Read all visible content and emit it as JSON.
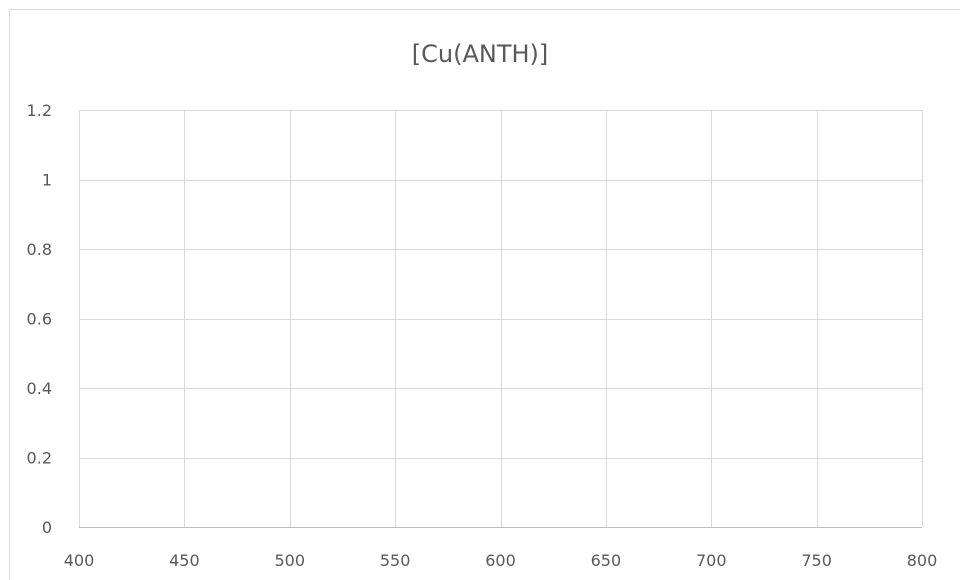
{
  "chart_data": {
    "type": "line",
    "title": "[Cu(ANTH)]",
    "xlabel": "",
    "ylabel": "",
    "xlim": [
      400,
      800
    ],
    "ylim": [
      0,
      1.2
    ],
    "x_ticks": [
      "400",
      "450",
      "500",
      "550",
      "600",
      "650",
      "700",
      "750",
      "800"
    ],
    "y_ticks": [
      "0",
      "0.2",
      "0.4",
      "0.6",
      "0.8",
      "1",
      "1.2"
    ],
    "x_tick_values": [
      400,
      450,
      500,
      550,
      600,
      650,
      700,
      750,
      800
    ],
    "y_tick_values": [
      0,
      0.2,
      0.4,
      0.6,
      0.8,
      1,
      1.2
    ],
    "series": [],
    "grid": true,
    "legend": "none",
    "colors": {
      "grid": "#d9d9d9",
      "axis": "#bfbfbf",
      "text": "#595959"
    }
  }
}
